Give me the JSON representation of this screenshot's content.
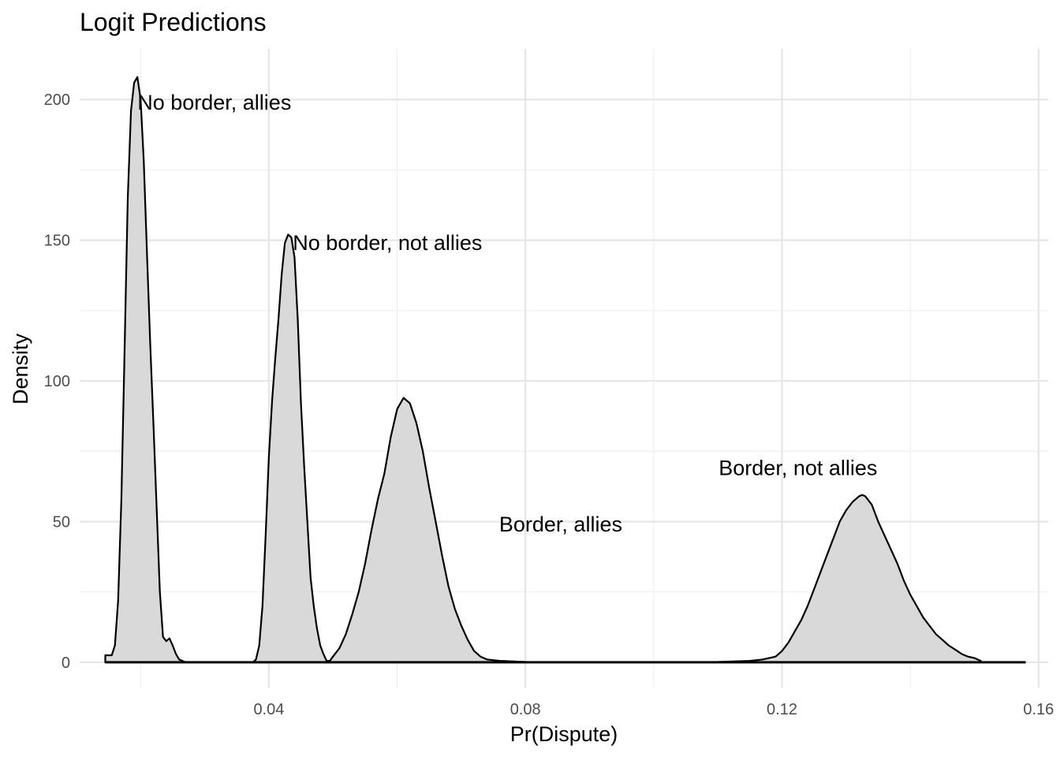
{
  "chart_data": {
    "type": "area",
    "title": "Logit Predictions",
    "xlabel": "Pr(Dispute)",
    "ylabel": "Density",
    "xlim": [
      0.0105,
      0.1615
    ],
    "ylim": [
      -9,
      218
    ],
    "x_major_ticks": [
      0.04,
      0.08,
      0.12,
      0.16
    ],
    "x_minor_ticks": [
      0.02,
      0.06,
      0.1,
      0.14
    ],
    "y_major_ticks": [
      0,
      50,
      100,
      150,
      200
    ],
    "y_minor_ticks": [
      25,
      75,
      125,
      175
    ],
    "x_tick_labels": [
      "0.04",
      "0.08",
      "0.12",
      "0.16"
    ],
    "y_tick_labels": [
      "0",
      "50",
      "100",
      "150",
      "200"
    ],
    "grid": true,
    "fill_color": "#d9d9d9",
    "line_color": "#000000",
    "series": [
      {
        "points": [
          [
            0.0145,
            2.5
          ],
          [
            0.0155,
            2.5
          ],
          [
            0.016,
            6
          ],
          [
            0.0165,
            22
          ],
          [
            0.017,
            58
          ],
          [
            0.0175,
            110
          ],
          [
            0.018,
            165
          ],
          [
            0.0185,
            196
          ],
          [
            0.019,
            206
          ],
          [
            0.0195,
            208
          ],
          [
            0.02,
            200
          ],
          [
            0.0205,
            178
          ],
          [
            0.021,
            145
          ],
          [
            0.0215,
            113
          ],
          [
            0.022,
            85
          ],
          [
            0.0225,
            55
          ],
          [
            0.023,
            25
          ],
          [
            0.0235,
            9
          ],
          [
            0.024,
            7.5
          ],
          [
            0.0245,
            8.5
          ],
          [
            0.025,
            6
          ],
          [
            0.0255,
            3
          ],
          [
            0.026,
            1
          ],
          [
            0.027,
            0
          ],
          [
            0.0285,
            0
          ]
        ]
      },
      {
        "points": [
          [
            0.0375,
            0
          ],
          [
            0.038,
            1
          ],
          [
            0.0385,
            6
          ],
          [
            0.039,
            20
          ],
          [
            0.0395,
            45
          ],
          [
            0.04,
            73
          ],
          [
            0.0405,
            93
          ],
          [
            0.041,
            108
          ],
          [
            0.0415,
            122
          ],
          [
            0.042,
            138
          ],
          [
            0.0425,
            149
          ],
          [
            0.043,
            152
          ],
          [
            0.0435,
            151
          ],
          [
            0.044,
            144
          ],
          [
            0.0445,
            122
          ],
          [
            0.045,
            92
          ],
          [
            0.0455,
            70
          ],
          [
            0.046,
            50
          ],
          [
            0.0465,
            30
          ],
          [
            0.047,
            20
          ],
          [
            0.0475,
            12
          ],
          [
            0.048,
            6
          ],
          [
            0.0485,
            3
          ],
          [
            0.049,
            0.5
          ],
          [
            0.0495,
            0.5
          ],
          [
            0.05,
            2
          ],
          [
            0.051,
            5
          ],
          [
            0.052,
            8
          ],
          [
            0.0525,
            11
          ]
        ]
      },
      {
        "points": [
          [
            0.0495,
            0.5
          ],
          [
            0.05,
            2
          ],
          [
            0.051,
            5
          ],
          [
            0.052,
            10
          ],
          [
            0.053,
            17
          ],
          [
            0.054,
            25
          ],
          [
            0.055,
            35
          ],
          [
            0.056,
            47
          ],
          [
            0.057,
            58
          ],
          [
            0.058,
            67
          ],
          [
            0.059,
            80
          ],
          [
            0.06,
            90
          ],
          [
            0.061,
            94
          ],
          [
            0.062,
            92
          ],
          [
            0.063,
            85
          ],
          [
            0.064,
            75
          ],
          [
            0.065,
            62
          ],
          [
            0.066,
            50
          ],
          [
            0.067,
            38
          ],
          [
            0.068,
            27
          ],
          [
            0.069,
            19
          ],
          [
            0.07,
            13
          ],
          [
            0.071,
            8
          ],
          [
            0.072,
            4
          ],
          [
            0.073,
            2
          ],
          [
            0.074,
            1
          ],
          [
            0.076,
            0.5
          ],
          [
            0.08,
            0.1
          ],
          [
            0.085,
            0
          ]
        ]
      },
      {
        "points": [
          [
            0.1,
            0
          ],
          [
            0.11,
            0.1
          ],
          [
            0.115,
            0.5
          ],
          [
            0.117,
            1
          ],
          [
            0.119,
            2
          ],
          [
            0.12,
            4
          ],
          [
            0.121,
            7
          ],
          [
            0.122,
            11
          ],
          [
            0.123,
            15
          ],
          [
            0.124,
            20
          ],
          [
            0.125,
            26
          ],
          [
            0.126,
            32
          ],
          [
            0.127,
            38
          ],
          [
            0.128,
            44
          ],
          [
            0.129,
            50
          ],
          [
            0.13,
            54
          ],
          [
            0.131,
            57
          ],
          [
            0.132,
            59
          ],
          [
            0.1325,
            59.5
          ],
          [
            0.133,
            59
          ],
          [
            0.134,
            56
          ],
          [
            0.135,
            50
          ],
          [
            0.136,
            45
          ],
          [
            0.137,
            40
          ],
          [
            0.138,
            35
          ],
          [
            0.139,
            29
          ],
          [
            0.14,
            24
          ],
          [
            0.141,
            20
          ],
          [
            0.142,
            16
          ],
          [
            0.143,
            13
          ],
          [
            0.144,
            10
          ],
          [
            0.145,
            8
          ],
          [
            0.146,
            6
          ],
          [
            0.147,
            4.5
          ],
          [
            0.148,
            3
          ],
          [
            0.149,
            2
          ],
          [
            0.15,
            1.5
          ],
          [
            0.151,
            0.5
          ]
        ]
      }
    ],
    "annotations": [
      {
        "text": "No border, allies",
        "x": 0.0315,
        "y": 199
      },
      {
        "text": "No border, not allies",
        "x": 0.0585,
        "y": 149
      },
      {
        "text": "Border, allies",
        "x": 0.0855,
        "y": 49
      },
      {
        "text": "Border, not allies",
        "x": 0.1225,
        "y": 69
      }
    ]
  }
}
